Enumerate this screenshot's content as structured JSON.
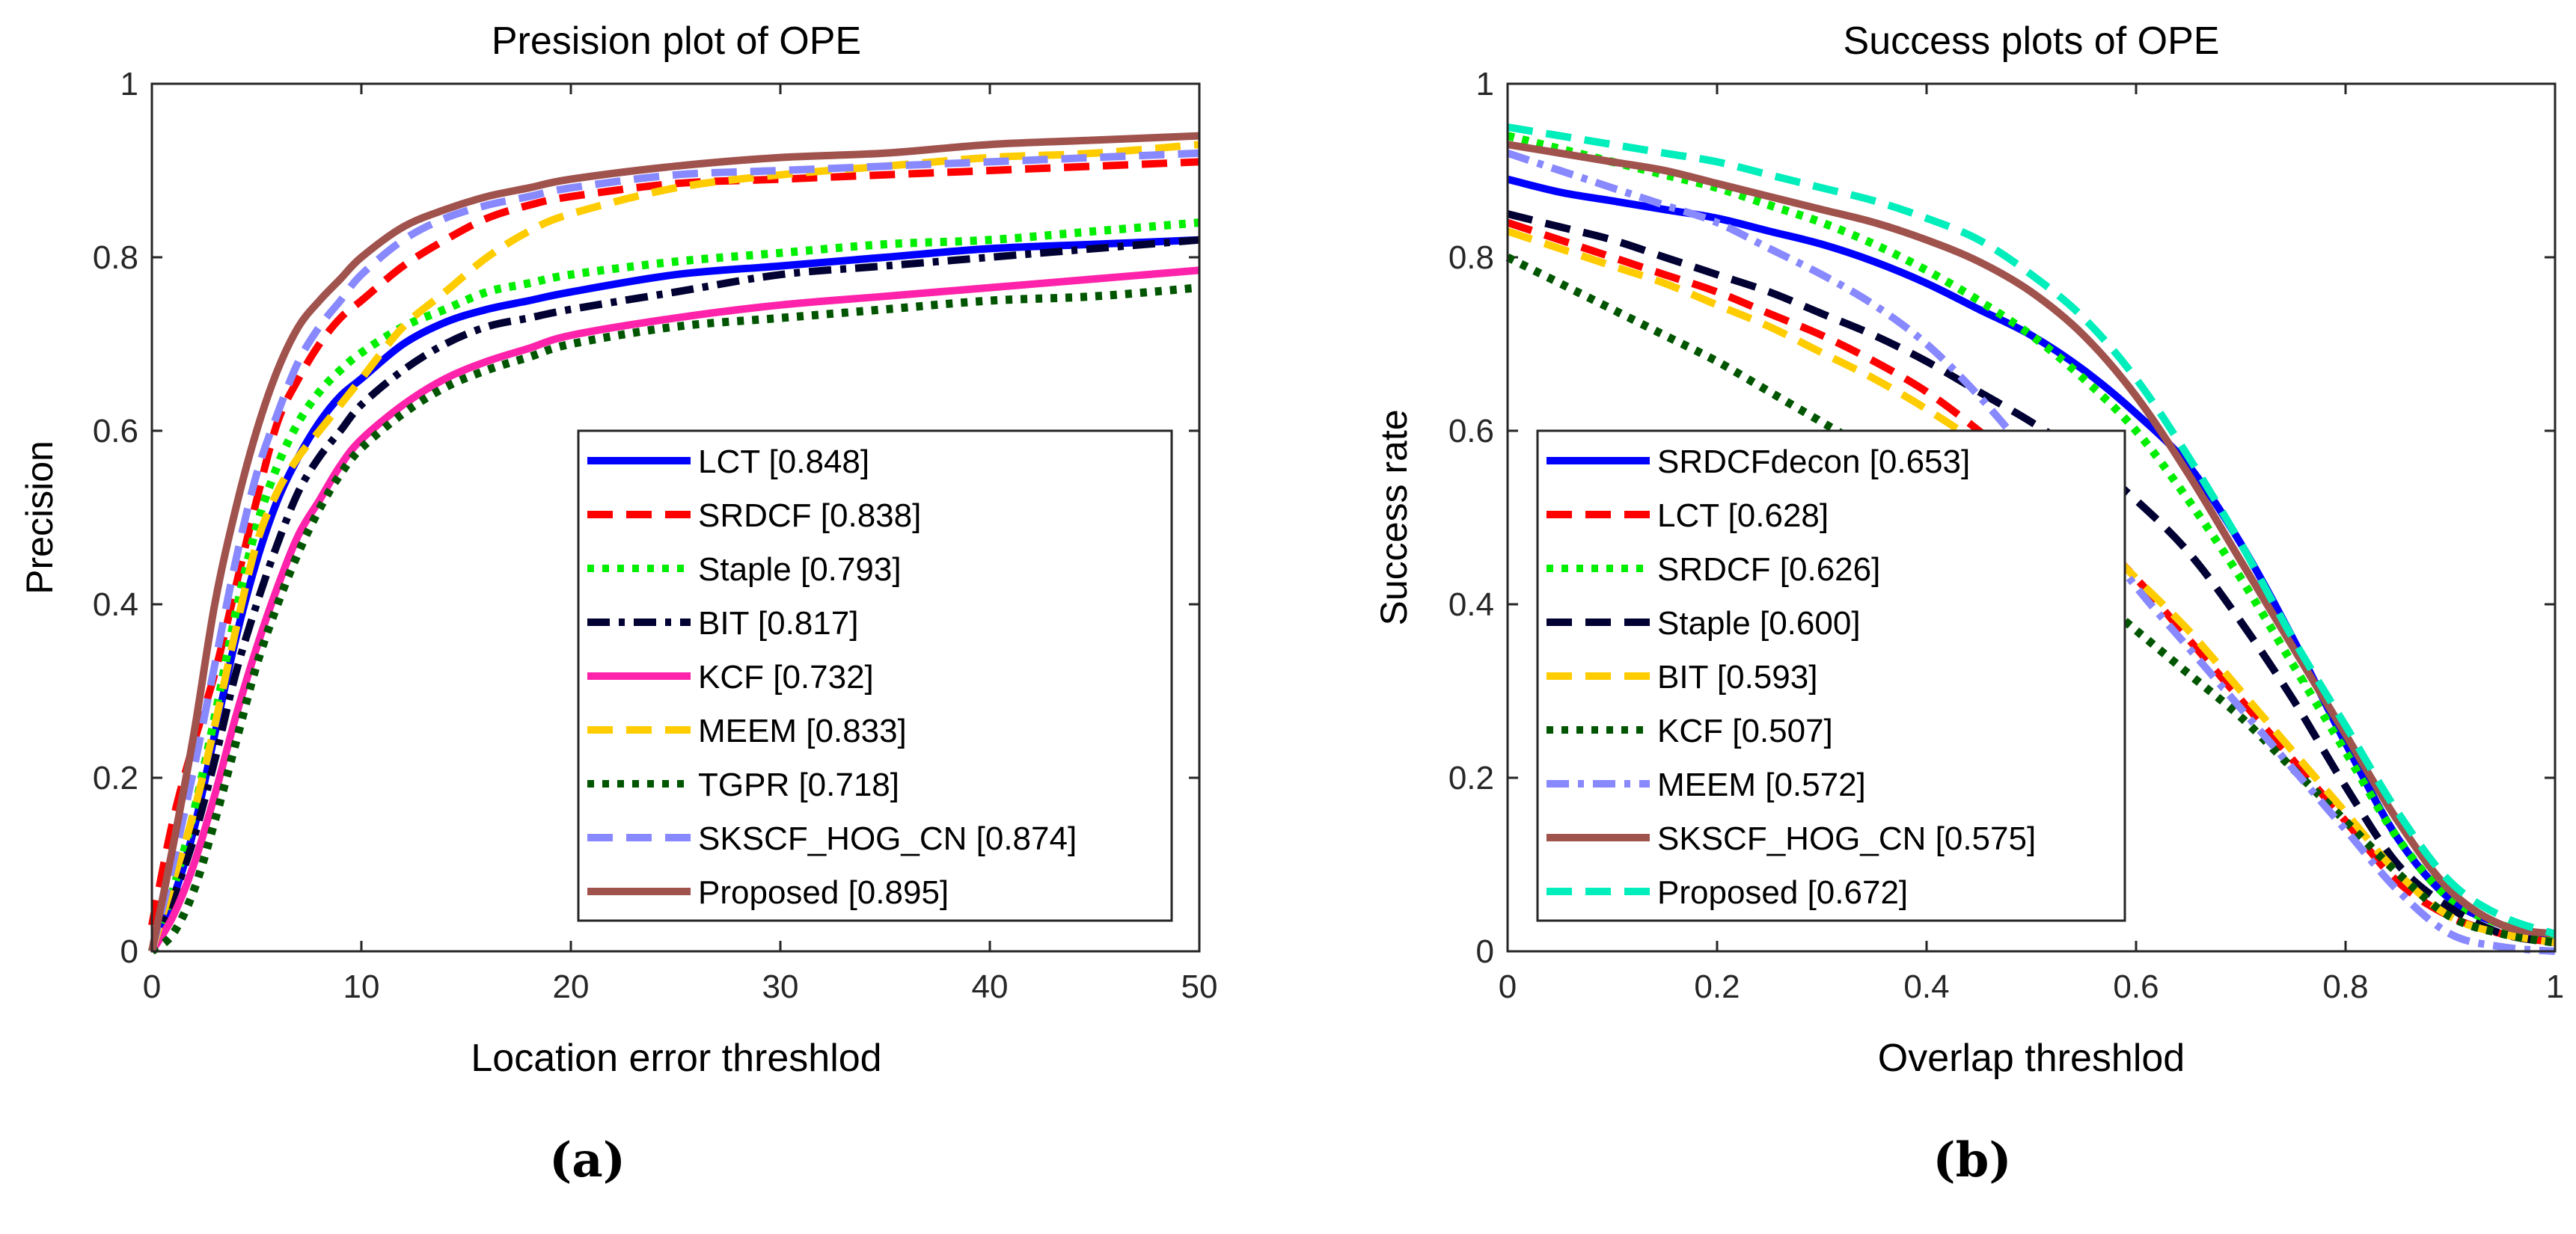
{
  "chart_data": [
    {
      "type": "line",
      "panel_label": "(a)",
      "title": "Presision plot of OPE",
      "xlabel": "Location error threshlod",
      "ylabel": "Precision",
      "xlim": [
        0,
        50
      ],
      "ylim": [
        0,
        1
      ],
      "xticks": [
        0,
        10,
        20,
        30,
        40,
        50
      ],
      "xtick_labels": [
        "0",
        "10",
        "20",
        "30",
        "40",
        "50"
      ],
      "yticks": [
        0,
        0.2,
        0.4,
        0.6,
        0.8,
        1
      ],
      "ytick_labels": [
        "0",
        "0.2",
        "0.4",
        "0.6",
        "0.8",
        "1"
      ],
      "grid": false,
      "legend_position": "bottom-right",
      "x": [
        0,
        1,
        2,
        3,
        4,
        5,
        6,
        7,
        8,
        9,
        10,
        12,
        14,
        16,
        18,
        20,
        25,
        30,
        35,
        40,
        45,
        50
      ],
      "series": [
        {
          "name": "LCT [0.848]",
          "color": "#0000ff",
          "dash": "solid",
          "values": [
            0.0,
            0.06,
            0.14,
            0.25,
            0.36,
            0.45,
            0.52,
            0.57,
            0.61,
            0.64,
            0.66,
            0.7,
            0.725,
            0.74,
            0.75,
            0.76,
            0.78,
            0.79,
            0.8,
            0.81,
            0.815,
            0.82
          ]
        },
        {
          "name": "SRDCF [0.838]",
          "color": "#ff0000",
          "dash": "dash",
          "values": [
            0.03,
            0.15,
            0.24,
            0.32,
            0.42,
            0.52,
            0.61,
            0.66,
            0.7,
            0.73,
            0.75,
            0.79,
            0.82,
            0.845,
            0.86,
            0.87,
            0.885,
            0.89,
            0.895,
            0.9,
            0.905,
            0.91
          ]
        },
        {
          "name": "Staple [0.793]",
          "color": "#00ee00",
          "dash": "dot",
          "values": [
            0.0,
            0.07,
            0.16,
            0.27,
            0.39,
            0.49,
            0.56,
            0.61,
            0.645,
            0.67,
            0.69,
            0.72,
            0.74,
            0.76,
            0.77,
            0.78,
            0.795,
            0.805,
            0.815,
            0.82,
            0.83,
            0.84
          ]
        },
        {
          "name": "BIT [0.817]",
          "color": "#000033",
          "dash": "dashdot",
          "values": [
            0.0,
            0.06,
            0.13,
            0.22,
            0.32,
            0.4,
            0.47,
            0.53,
            0.57,
            0.6,
            0.63,
            0.67,
            0.7,
            0.72,
            0.73,
            0.74,
            0.76,
            0.78,
            0.79,
            0.8,
            0.81,
            0.82
          ]
        },
        {
          "name": "KCF [0.732]",
          "color": "#ff22aa",
          "dash": "solid",
          "values": [
            0.0,
            0.04,
            0.1,
            0.18,
            0.27,
            0.35,
            0.42,
            0.48,
            0.52,
            0.56,
            0.59,
            0.63,
            0.66,
            0.68,
            0.695,
            0.71,
            0.73,
            0.745,
            0.755,
            0.765,
            0.775,
            0.785
          ]
        },
        {
          "name": "MEEM [0.833]",
          "color": "#ffcc00",
          "dash": "dash",
          "values": [
            0.0,
            0.08,
            0.16,
            0.26,
            0.37,
            0.47,
            0.53,
            0.57,
            0.6,
            0.63,
            0.66,
            0.72,
            0.76,
            0.8,
            0.83,
            0.85,
            0.88,
            0.895,
            0.905,
            0.915,
            0.92,
            0.93
          ]
        },
        {
          "name": "TGPR [0.718]",
          "color": "#005500",
          "dash": "dot",
          "values": [
            0.0,
            0.02,
            0.07,
            0.15,
            0.24,
            0.33,
            0.4,
            0.46,
            0.51,
            0.55,
            0.58,
            0.62,
            0.65,
            0.67,
            0.685,
            0.7,
            0.72,
            0.73,
            0.74,
            0.75,
            0.755,
            0.765
          ]
        },
        {
          "name": "SKSCF_HOG_CN [0.874]",
          "color": "#8888ff",
          "dash": "dash",
          "values": [
            0.0,
            0.1,
            0.21,
            0.33,
            0.45,
            0.55,
            0.62,
            0.68,
            0.72,
            0.75,
            0.78,
            0.82,
            0.845,
            0.86,
            0.87,
            0.88,
            0.895,
            0.9,
            0.905,
            0.91,
            0.915,
            0.92
          ]
        },
        {
          "name": "Proposed [0.895]",
          "color": "#a0524d",
          "dash": "solid",
          "values": [
            0.0,
            0.12,
            0.25,
            0.4,
            0.51,
            0.6,
            0.67,
            0.72,
            0.75,
            0.775,
            0.8,
            0.835,
            0.855,
            0.87,
            0.88,
            0.89,
            0.905,
            0.915,
            0.92,
            0.93,
            0.935,
            0.94
          ]
        }
      ]
    },
    {
      "type": "line",
      "panel_label": "(b)",
      "title": "Success plots of OPE",
      "xlabel": "Overlap threshlod",
      "ylabel": "Success rate",
      "xlim": [
        0,
        1
      ],
      "ylim": [
        0,
        1
      ],
      "xticks": [
        0,
        0.2,
        0.4,
        0.6,
        0.8,
        1
      ],
      "xtick_labels": [
        "0",
        "0.2",
        "0.4",
        "0.6",
        "0.8",
        "1"
      ],
      "yticks": [
        0,
        0.2,
        0.4,
        0.6,
        0.8,
        1
      ],
      "ytick_labels": [
        "0",
        "0.2",
        "0.4",
        "0.6",
        "0.8",
        "1"
      ],
      "grid": false,
      "legend_position": "bottom-left",
      "x": [
        0,
        0.05,
        0.1,
        0.15,
        0.2,
        0.25,
        0.3,
        0.35,
        0.4,
        0.45,
        0.5,
        0.55,
        0.6,
        0.65,
        0.7,
        0.75,
        0.8,
        0.85,
        0.9,
        0.95,
        1.0
      ],
      "series": [
        {
          "name": "SRDCFdecon [0.653]",
          "color": "#0000ff",
          "dash": "solid",
          "values": [
            0.89,
            0.875,
            0.865,
            0.855,
            0.845,
            0.83,
            0.815,
            0.795,
            0.77,
            0.74,
            0.71,
            0.67,
            0.62,
            0.56,
            0.47,
            0.36,
            0.24,
            0.13,
            0.06,
            0.03,
            0.01
          ]
        },
        {
          "name": "LCT [0.628]",
          "color": "#ff0000",
          "dash": "dash",
          "values": [
            0.84,
            0.82,
            0.8,
            0.78,
            0.76,
            0.735,
            0.71,
            0.68,
            0.645,
            0.6,
            0.55,
            0.49,
            0.43,
            0.36,
            0.29,
            0.22,
            0.15,
            0.08,
            0.04,
            0.02,
            0.01
          ]
        },
        {
          "name": "SRDCF [0.626]",
          "color": "#00ee00",
          "dash": "dot",
          "values": [
            0.94,
            0.925,
            0.91,
            0.895,
            0.88,
            0.86,
            0.84,
            0.815,
            0.785,
            0.75,
            0.71,
            0.66,
            0.6,
            0.52,
            0.43,
            0.33,
            0.23,
            0.13,
            0.06,
            0.03,
            0.01
          ]
        },
        {
          "name": "Staple [0.600]",
          "color": "#000033",
          "dash": "dash",
          "values": [
            0.85,
            0.835,
            0.82,
            0.8,
            0.78,
            0.76,
            0.735,
            0.71,
            0.68,
            0.645,
            0.61,
            0.57,
            0.52,
            0.46,
            0.38,
            0.29,
            0.19,
            0.1,
            0.05,
            0.02,
            0.01
          ]
        },
        {
          "name": "BIT [0.593]",
          "color": "#ffcc00",
          "dash": "dash",
          "values": [
            0.83,
            0.81,
            0.79,
            0.77,
            0.745,
            0.72,
            0.69,
            0.66,
            0.625,
            0.585,
            0.54,
            0.49,
            0.43,
            0.37,
            0.3,
            0.23,
            0.16,
            0.09,
            0.04,
            0.02,
            0.01
          ]
        },
        {
          "name": "KCF [0.507]",
          "color": "#005500",
          "dash": "dot",
          "values": [
            0.8,
            0.77,
            0.74,
            0.71,
            0.68,
            0.645,
            0.61,
            0.575,
            0.54,
            0.5,
            0.46,
            0.42,
            0.37,
            0.32,
            0.27,
            0.21,
            0.15,
            0.09,
            0.04,
            0.02,
            0.01
          ]
        },
        {
          "name": "MEEM [0.572]",
          "color": "#8888ff",
          "dash": "dashdot",
          "values": [
            0.92,
            0.9,
            0.88,
            0.86,
            0.84,
            0.81,
            0.78,
            0.745,
            0.7,
            0.64,
            0.57,
            0.5,
            0.42,
            0.35,
            0.28,
            0.21,
            0.14,
            0.07,
            0.02,
            0.005,
            0.0
          ]
        },
        {
          "name": "SKSCF_HOG_CN [0.575]",
          "color": "#a0524d",
          "dash": "solid",
          "values": [
            0.93,
            0.92,
            0.91,
            0.9,
            0.885,
            0.87,
            0.855,
            0.84,
            0.82,
            0.795,
            0.76,
            0.71,
            0.64,
            0.55,
            0.45,
            0.35,
            0.25,
            0.15,
            0.07,
            0.03,
            0.02
          ]
        },
        {
          "name": "Proposed [0.672]",
          "color": "#00eebb",
          "dash": "dash",
          "values": [
            0.95,
            0.94,
            0.93,
            0.92,
            0.91,
            0.895,
            0.88,
            0.865,
            0.845,
            0.82,
            0.78,
            0.73,
            0.66,
            0.57,
            0.47,
            0.36,
            0.26,
            0.16,
            0.08,
            0.04,
            0.02
          ]
        }
      ]
    }
  ]
}
